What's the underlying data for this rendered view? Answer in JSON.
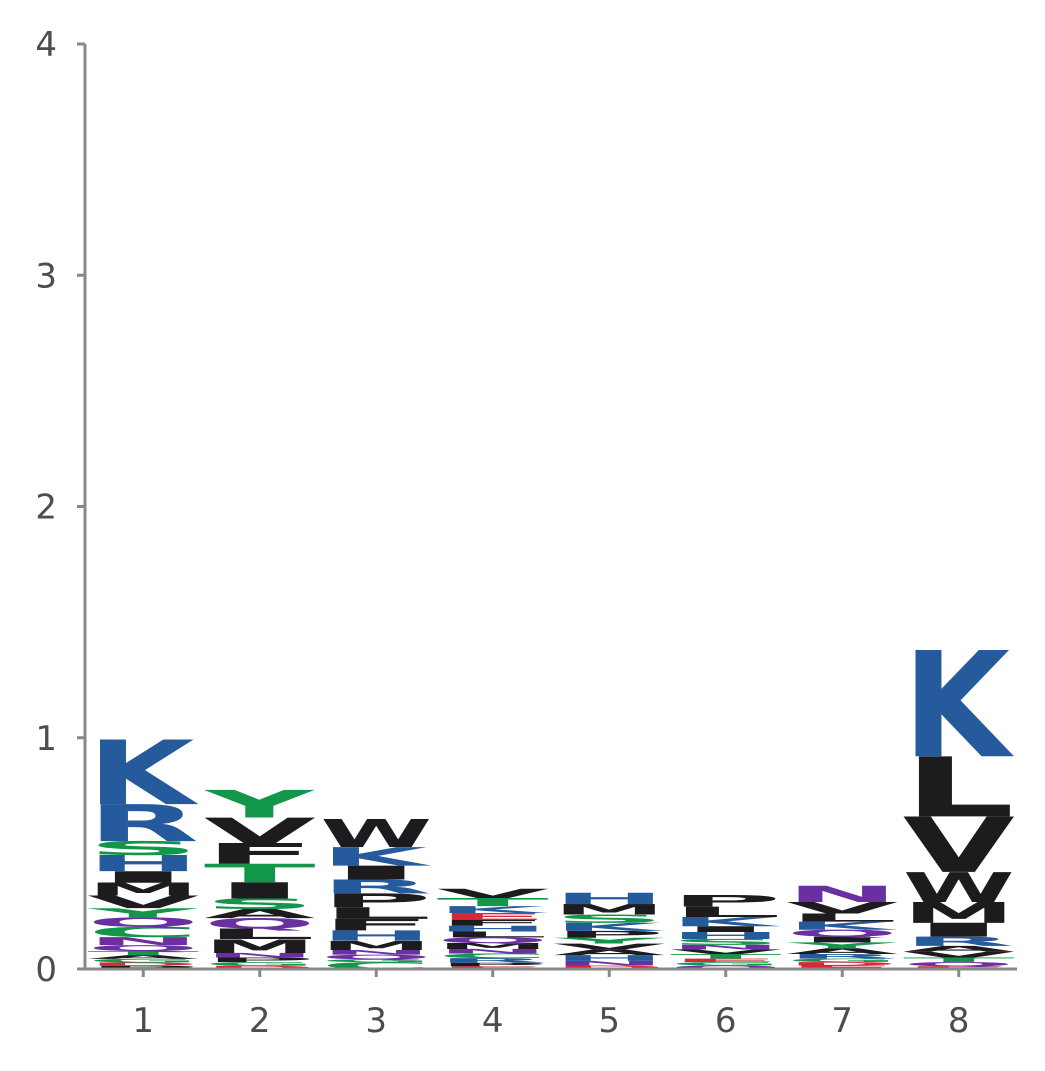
{
  "chart_data": {
    "type": "sequence-logo",
    "title": "",
    "xlabel": "",
    "ylabel": "",
    "ylim": [
      0,
      4
    ],
    "yticks": [
      "0",
      "1",
      "2",
      "3",
      "4"
    ],
    "xticks": [
      "1",
      "2",
      "3",
      "4",
      "5",
      "6",
      "7",
      "8"
    ],
    "grid": false,
    "colors": {
      "basic": "#255a9c",
      "polar": "#12964a",
      "hydrophobic": "#1d1b1d",
      "acidic": "#d62839",
      "amide": "#6a2fa0",
      "axis": "#888888",
      "tick_label": "#4d4d4d"
    },
    "positions": [
      {
        "position": "1",
        "total": 0.92,
        "letters": [
          {
            "aa": "P",
            "height": 0.014,
            "color": "#1d1b1d"
          },
          {
            "aa": "D",
            "height": 0.014,
            "color": "#d62839"
          },
          {
            "aa": "G",
            "height": 0.016,
            "color": "#12964a"
          },
          {
            "aa": "A",
            "height": 0.016,
            "color": "#1d1b1d"
          },
          {
            "aa": "T",
            "height": 0.018,
            "color": "#12964a"
          },
          {
            "aa": "Q",
            "height": 0.025,
            "color": "#6a2fa0"
          },
          {
            "aa": "N",
            "height": 0.035,
            "color": "#6a2fa0"
          },
          {
            "aa": "C",
            "height": 0.045,
            "color": "#12964a"
          },
          {
            "aa": "Q",
            "height": 0.04,
            "color": "#6a2fa0"
          },
          {
            "aa": "Y",
            "height": 0.04,
            "color": "#12964a"
          },
          {
            "aa": "V",
            "height": 0.055,
            "color": "#1d1b1d"
          },
          {
            "aa": "M",
            "height": 0.055,
            "color": "#1d1b1d"
          },
          {
            "aa": "I",
            "height": 0.05,
            "color": "#1d1b1d"
          },
          {
            "aa": "H",
            "height": 0.07,
            "color": "#255a9c"
          },
          {
            "aa": "S",
            "height": 0.06,
            "color": "#12964a"
          },
          {
            "aa": "R",
            "height": 0.16,
            "color": "#255a9c"
          },
          {
            "aa": "K",
            "height": 0.28,
            "color": "#255a9c"
          }
        ]
      },
      {
        "position": "2",
        "total": 0.72,
        "letters": [
          {
            "aa": "D",
            "height": 0.014,
            "color": "#d62839"
          },
          {
            "aa": "G",
            "height": 0.016,
            "color": "#12964a"
          },
          {
            "aa": "P",
            "height": 0.02,
            "color": "#1d1b1d"
          },
          {
            "aa": "N",
            "height": 0.02,
            "color": "#6a2fa0"
          },
          {
            "aa": "M",
            "height": 0.06,
            "color": "#1d1b1d"
          },
          {
            "aa": "L",
            "height": 0.045,
            "color": "#1d1b1d"
          },
          {
            "aa": "Q",
            "height": 0.045,
            "color": "#6a2fa0"
          },
          {
            "aa": "A",
            "height": 0.04,
            "color": "#1d1b1d"
          },
          {
            "aa": "S",
            "height": 0.045,
            "color": "#12964a"
          },
          {
            "aa": "I",
            "height": 0.07,
            "color": "#1d1b1d"
          },
          {
            "aa": "T",
            "height": 0.08,
            "color": "#12964a"
          },
          {
            "aa": "F",
            "height": 0.09,
            "color": "#1d1b1d"
          },
          {
            "aa": "V",
            "height": 0.11,
            "color": "#1d1b1d"
          },
          {
            "aa": "Y",
            "height": 0.12,
            "color": "#12964a"
          }
        ]
      },
      {
        "position": "3",
        "total": 0.63,
        "letters": [
          {
            "aa": "C",
            "height": 0.03,
            "color": "#12964a"
          },
          {
            "aa": "G",
            "height": 0.012,
            "color": "#12964a"
          },
          {
            "aa": "Q",
            "height": 0.02,
            "color": "#6a2fa0"
          },
          {
            "aa": "N",
            "height": 0.02,
            "color": "#6a2fa0"
          },
          {
            "aa": "M",
            "height": 0.04,
            "color": "#1d1b1d"
          },
          {
            "aa": "H",
            "height": 0.045,
            "color": "#255a9c"
          },
          {
            "aa": "F",
            "height": 0.05,
            "color": "#1d1b1d"
          },
          {
            "aa": "L",
            "height": 0.05,
            "color": "#1d1b1d"
          },
          {
            "aa": "P",
            "height": 0.06,
            "color": "#1d1b1d"
          },
          {
            "aa": "R",
            "height": 0.06,
            "color": "#255a9c"
          },
          {
            "aa": "I",
            "height": 0.06,
            "color": "#1d1b1d"
          },
          {
            "aa": "K",
            "height": 0.08,
            "color": "#255a9c"
          },
          {
            "aa": "W",
            "height": 0.12,
            "color": "#1d1b1d"
          }
        ]
      },
      {
        "position": "4",
        "total": 0.38,
        "letters": [
          {
            "aa": "E",
            "height": 0.012,
            "color": "#d62839"
          },
          {
            "aa": "P",
            "height": 0.015,
            "color": "#1d1b1d"
          },
          {
            "aa": "R",
            "height": 0.02,
            "color": "#255a9c"
          },
          {
            "aa": "C",
            "height": 0.02,
            "color": "#12964a"
          },
          {
            "aa": "N",
            "height": 0.02,
            "color": "#6a2fa0"
          },
          {
            "aa": "M",
            "height": 0.025,
            "color": "#1d1b1d"
          },
          {
            "aa": "Q",
            "height": 0.025,
            "color": "#6a2fa0"
          },
          {
            "aa": "L",
            "height": 0.025,
            "color": "#1d1b1d"
          },
          {
            "aa": "H",
            "height": 0.025,
            "color": "#255a9c"
          },
          {
            "aa": "F",
            "height": 0.025,
            "color": "#1d1b1d"
          },
          {
            "aa": "E",
            "height": 0.03,
            "color": "#d62839"
          },
          {
            "aa": "K",
            "height": 0.03,
            "color": "#255a9c"
          },
          {
            "aa": "T",
            "height": 0.035,
            "color": "#12964a"
          },
          {
            "aa": "V",
            "height": 0.04,
            "color": "#1d1b1d"
          }
        ]
      },
      {
        "position": "5",
        "total": 0.36,
        "letters": [
          {
            "aa": "D",
            "height": 0.015,
            "color": "#d62839"
          },
          {
            "aa": "N",
            "height": 0.02,
            "color": "#6a2fa0"
          },
          {
            "aa": "H",
            "height": 0.025,
            "color": "#255a9c"
          },
          {
            "aa": "A",
            "height": 0.025,
            "color": "#1d1b1d"
          },
          {
            "aa": "V",
            "height": 0.025,
            "color": "#1d1b1d"
          },
          {
            "aa": "Y",
            "height": 0.025,
            "color": "#12964a"
          },
          {
            "aa": "P",
            "height": 0.03,
            "color": "#1d1b1d"
          },
          {
            "aa": "K",
            "height": 0.035,
            "color": "#255a9c"
          },
          {
            "aa": "S",
            "height": 0.035,
            "color": "#12964a"
          },
          {
            "aa": "M",
            "height": 0.045,
            "color": "#1d1b1d"
          },
          {
            "aa": "H",
            "height": 0.05,
            "color": "#255a9c"
          }
        ]
      },
      {
        "position": "6",
        "total": 0.35,
        "letters": [
          {
            "aa": "Q",
            "height": 0.015,
            "color": "#6a2fa0"
          },
          {
            "aa": "G",
            "height": 0.015,
            "color": "#12964a"
          },
          {
            "aa": "E",
            "height": 0.015,
            "color": "#d62839"
          },
          {
            "aa": "T",
            "height": 0.02,
            "color": "#12964a"
          },
          {
            "aa": "V",
            "height": 0.02,
            "color": "#1d1b1d"
          },
          {
            "aa": "N",
            "height": 0.02,
            "color": "#6a2fa0"
          },
          {
            "aa": "S",
            "height": 0.025,
            "color": "#12964a"
          },
          {
            "aa": "H",
            "height": 0.03,
            "color": "#255a9c"
          },
          {
            "aa": "I",
            "height": 0.025,
            "color": "#1d1b1d"
          },
          {
            "aa": "K",
            "height": 0.04,
            "color": "#255a9c"
          },
          {
            "aa": "L",
            "height": 0.045,
            "color": "#1d1b1d"
          },
          {
            "aa": "P",
            "height": 0.05,
            "color": "#1d1b1d"
          }
        ]
      },
      {
        "position": "7",
        "total": 0.43,
        "letters": [
          {
            "aa": "E",
            "height": 0.015,
            "color": "#d62839"
          },
          {
            "aa": "D",
            "height": 0.015,
            "color": "#d62839"
          },
          {
            "aa": "G",
            "height": 0.015,
            "color": "#12964a"
          },
          {
            "aa": "R",
            "height": 0.02,
            "color": "#255a9c"
          },
          {
            "aa": "A",
            "height": 0.025,
            "color": "#1d1b1d"
          },
          {
            "aa": "Y",
            "height": 0.025,
            "color": "#12964a"
          },
          {
            "aa": "I",
            "height": 0.025,
            "color": "#1d1b1d"
          },
          {
            "aa": "Q",
            "height": 0.03,
            "color": "#6a2fa0"
          },
          {
            "aa": "K",
            "height": 0.035,
            "color": "#255a9c"
          },
          {
            "aa": "L",
            "height": 0.035,
            "color": "#1d1b1d"
          },
          {
            "aa": "V",
            "height": 0.05,
            "color": "#1d1b1d"
          },
          {
            "aa": "N",
            "height": 0.07,
            "color": "#6a2fa0"
          }
        ]
      },
      {
        "position": "8",
        "total": 1.37,
        "letters": [
          {
            "aa": "E",
            "height": 0.012,
            "color": "#d62839"
          },
          {
            "aa": "Q",
            "height": 0.018,
            "color": "#6a2fa0"
          },
          {
            "aa": "T",
            "height": 0.02,
            "color": "#12964a"
          },
          {
            "aa": "V",
            "height": 0.025,
            "color": "#1d1b1d"
          },
          {
            "aa": "A",
            "height": 0.025,
            "color": "#1d1b1d"
          },
          {
            "aa": "R",
            "height": 0.04,
            "color": "#255a9c"
          },
          {
            "aa": "I",
            "height": 0.06,
            "color": "#1d1b1d"
          },
          {
            "aa": "M",
            "height": 0.09,
            "color": "#1d1b1d"
          },
          {
            "aa": "W",
            "height": 0.13,
            "color": "#1d1b1d"
          },
          {
            "aa": "V",
            "height": 0.24,
            "color": "#1d1b1d"
          },
          {
            "aa": "L",
            "height": 0.26,
            "color": "#1d1b1d"
          },
          {
            "aa": "K",
            "height": 0.46,
            "color": "#255a9c"
          }
        ]
      }
    ]
  }
}
